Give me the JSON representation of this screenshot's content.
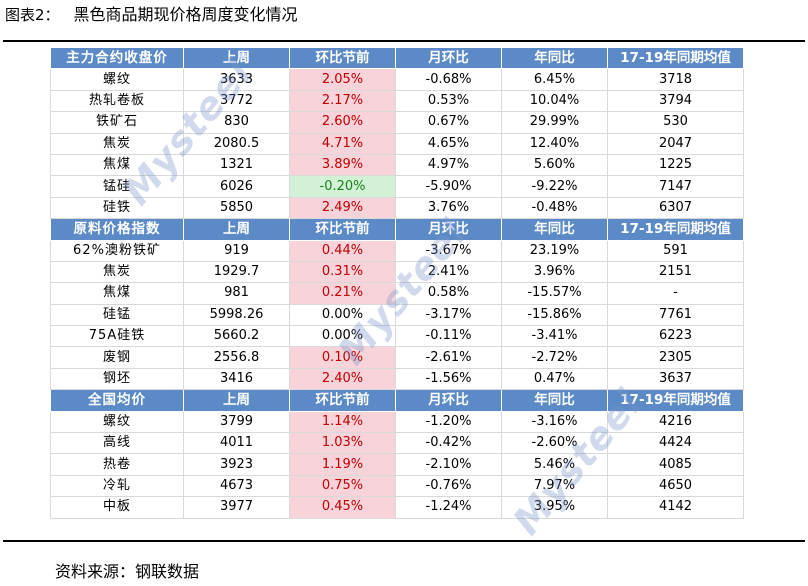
{
  "caption": {
    "label": "图表2：",
    "title": "黑色商品期现价格周度变化情况"
  },
  "headers": [
    "上周",
    "环比节前",
    "月环比",
    "年同比",
    "17-19年同期均值"
  ],
  "sections": [
    {
      "title": "主力合约收盘价",
      "rows": [
        {
          "name": "螺纹",
          "cells": [
            "3633",
            "2.05%",
            "-0.68%",
            "6.45%",
            "3718"
          ],
          "trend": "up"
        },
        {
          "name": "热轧卷板",
          "cells": [
            "3772",
            "2.17%",
            "0.53%",
            "10.04%",
            "3794"
          ],
          "trend": "up"
        },
        {
          "name": "铁矿石",
          "cells": [
            "830",
            "2.60%",
            "0.67%",
            "29.99%",
            "530"
          ],
          "trend": "up"
        },
        {
          "name": "焦炭",
          "cells": [
            "2080.5",
            "4.71%",
            "4.65%",
            "12.40%",
            "2047"
          ],
          "trend": "up"
        },
        {
          "name": "焦煤",
          "cells": [
            "1321",
            "3.89%",
            "4.97%",
            "5.60%",
            "1225"
          ],
          "trend": "up"
        },
        {
          "name": "锰硅",
          "cells": [
            "6026",
            "-0.20%",
            "-5.90%",
            "-9.22%",
            "7147"
          ],
          "trend": "down"
        },
        {
          "name": "硅铁",
          "cells": [
            "5850",
            "2.49%",
            "3.76%",
            "-0.48%",
            "6307"
          ],
          "trend": "up"
        }
      ]
    },
    {
      "title": "原料价格指数",
      "rows": [
        {
          "name": "62%澳粉铁矿",
          "cells": [
            "919",
            "0.44%",
            "-3.67%",
            "23.19%",
            "591"
          ],
          "trend": "up"
        },
        {
          "name": "焦炭",
          "cells": [
            "1929.7",
            "0.31%",
            "2.41%",
            "3.96%",
            "2151"
          ],
          "trend": "up"
        },
        {
          "name": "焦煤",
          "cells": [
            "981",
            "0.21%",
            "0.58%",
            "-15.57%",
            "-"
          ],
          "trend": "up"
        },
        {
          "name": "硅锰",
          "cells": [
            "5998.26",
            "0.00%",
            "-3.17%",
            "-15.86%",
            "7761"
          ],
          "trend": "flat"
        },
        {
          "name": "75A硅铁",
          "cells": [
            "5660.2",
            "0.00%",
            "-0.11%",
            "-3.41%",
            "6223"
          ],
          "trend": "flat"
        },
        {
          "name": "废钢",
          "cells": [
            "2556.8",
            "0.10%",
            "-2.61%",
            "-2.72%",
            "2305"
          ],
          "trend": "up"
        },
        {
          "name": "钢坯",
          "cells": [
            "3416",
            "2.40%",
            "-1.56%",
            "0.47%",
            "3637"
          ],
          "trend": "up"
        }
      ]
    },
    {
      "title": "全国均价",
      "rows": [
        {
          "name": "螺纹",
          "cells": [
            "3799",
            "1.14%",
            "-1.20%",
            "-3.16%",
            "4216"
          ],
          "trend": "up"
        },
        {
          "name": "高线",
          "cells": [
            "4011",
            "1.03%",
            "-0.42%",
            "-2.60%",
            "4424"
          ],
          "trend": "up"
        },
        {
          "name": "热卷",
          "cells": [
            "3923",
            "1.19%",
            "-2.10%",
            "5.46%",
            "4085"
          ],
          "trend": "up"
        },
        {
          "name": "冷轧",
          "cells": [
            "4673",
            "0.75%",
            "-0.76%",
            "7.97%",
            "4650"
          ],
          "trend": "up"
        },
        {
          "name": "中板",
          "cells": [
            "3977",
            "0.45%",
            "-1.24%",
            "3.95%",
            "4142"
          ],
          "trend": "up"
        }
      ]
    }
  ],
  "source": "资料来源：钢联数据",
  "watermark": "Mysteel",
  "colors": {
    "header_bg": "#5b8ac6",
    "up_bg": "#f8d3d9",
    "up_text": "#c00000",
    "down_bg": "#d3f1d6",
    "down_text": "#1a7f1a"
  }
}
